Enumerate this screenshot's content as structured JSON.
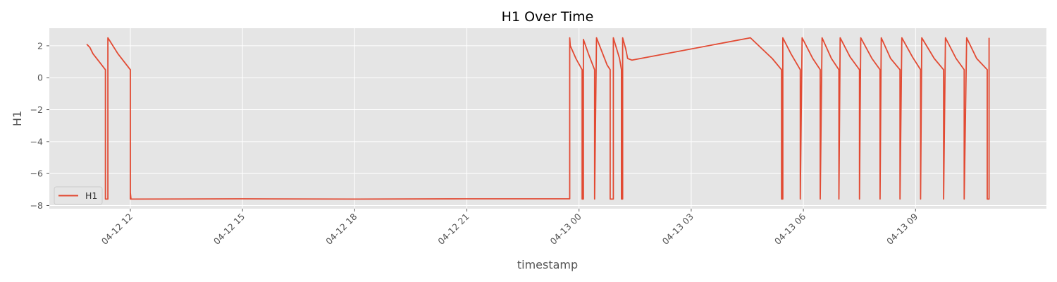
{
  "chart_data": {
    "type": "line",
    "title": "H1 Over Time",
    "xlabel": "timestamp",
    "ylabel": "H1",
    "grid": true,
    "legend_position": "lower-left",
    "xlim": [
      "2024-04-12 09:50",
      "2024-04-13 12:30"
    ],
    "ylim": [
      -8.2,
      3.1
    ],
    "x_ticks": [
      {
        "value": "2024-04-12 12:00",
        "label": "04-12 12"
      },
      {
        "value": "2024-04-12 15:00",
        "label": "04-12 15"
      },
      {
        "value": "2024-04-12 18:00",
        "label": "04-12 18"
      },
      {
        "value": "2024-04-12 21:00",
        "label": "04-12 21"
      },
      {
        "value": "2024-04-13 00:00",
        "label": "04-13 00"
      },
      {
        "value": "2024-04-13 03:00",
        "label": "04-13 03"
      },
      {
        "value": "2024-04-13 06:00",
        "label": "04-13 06"
      },
      {
        "value": "2024-04-13 09:00",
        "label": "04-13 09"
      }
    ],
    "y_ticks": [
      2,
      0,
      -2,
      -4,
      -6,
      -8
    ],
    "colors": {
      "series": "#E24A33",
      "plot_bg": "#E5E5E5",
      "grid": "#FFFFFF"
    },
    "series": [
      {
        "name": "H1",
        "points": [
          [
            "2024-04-12 10:50",
            2.1
          ],
          [
            "2024-04-12 10:55",
            1.9
          ],
          [
            "2024-04-12 11:00",
            1.5
          ],
          [
            "2024-04-12 11:10",
            1.0
          ],
          [
            "2024-04-12 11:20",
            0.5
          ],
          [
            "2024-04-12 11:20",
            -7.6
          ],
          [
            "2024-04-12 11:24",
            -7.6
          ],
          [
            "2024-04-12 11:24",
            2.5
          ],
          [
            "2024-04-12 11:40",
            1.5
          ],
          [
            "2024-04-12 12:00",
            0.5
          ],
          [
            "2024-04-12 12:00",
            -7.6
          ],
          [
            "2024-04-12 12:00",
            -7.2
          ],
          [
            "2024-04-12 12:01",
            -7.6
          ],
          [
            "2024-04-12 15:00",
            -7.58
          ],
          [
            "2024-04-12 18:00",
            -7.6
          ],
          [
            "2024-04-12 21:00",
            -7.58
          ],
          [
            "2024-04-12 23:45",
            -7.58
          ],
          [
            "2024-04-12 23:45",
            2.5
          ],
          [
            "2024-04-12 23:46",
            2.0
          ],
          [
            "2024-04-12 23:55",
            1.2
          ],
          [
            "2024-04-13 00:05",
            0.5
          ],
          [
            "2024-04-13 00:05",
            -7.6
          ],
          [
            "2024-04-13 00:07",
            -7.6
          ],
          [
            "2024-04-13 00:07",
            2.4
          ],
          [
            "2024-04-13 00:15",
            1.5
          ],
          [
            "2024-04-13 00:25",
            0.5
          ],
          [
            "2024-04-13 00:25",
            -7.6
          ],
          [
            "2024-04-13 00:28",
            2.5
          ],
          [
            "2024-04-13 00:35",
            1.8
          ],
          [
            "2024-04-13 00:45",
            0.8
          ],
          [
            "2024-04-13 00:50",
            0.5
          ],
          [
            "2024-04-13 00:50",
            -7.6
          ],
          [
            "2024-04-13 00:55",
            -7.6
          ],
          [
            "2024-04-13 00:55",
            2.5
          ],
          [
            "2024-04-13 01:05",
            1.2
          ],
          [
            "2024-04-13 01:08",
            0.5
          ],
          [
            "2024-04-13 01:08",
            -7.6
          ],
          [
            "2024-04-13 01:10",
            -7.6
          ],
          [
            "2024-04-13 01:10",
            2.5
          ],
          [
            "2024-04-13 01:15",
            1.8
          ],
          [
            "2024-04-13 01:18",
            1.2
          ],
          [
            "2024-04-13 01:25",
            1.1
          ],
          [
            "2024-04-13 04:35",
            2.5
          ],
          [
            "2024-04-13 05:10",
            1.2
          ],
          [
            "2024-04-13 05:25",
            0.5
          ],
          [
            "2024-04-13 05:25",
            -7.6
          ],
          [
            "2024-04-13 05:27",
            -7.6
          ],
          [
            "2024-04-13 05:27",
            2.5
          ],
          [
            "2024-04-13 05:40",
            1.5
          ],
          [
            "2024-04-13 05:55",
            0.5
          ],
          [
            "2024-04-13 05:55",
            -7.6
          ],
          [
            "2024-04-13 05:58",
            2.5
          ],
          [
            "2024-04-13 06:15",
            1.2
          ],
          [
            "2024-04-13 06:27",
            0.5
          ],
          [
            "2024-04-13 06:27",
            -7.6
          ],
          [
            "2024-04-13 06:30",
            2.5
          ],
          [
            "2024-04-13 06:45",
            1.2
          ],
          [
            "2024-04-13 06:57",
            0.5
          ],
          [
            "2024-04-13 06:57",
            -7.6
          ],
          [
            "2024-04-13 06:59",
            2.5
          ],
          [
            "2024-04-13 07:15",
            1.3
          ],
          [
            "2024-04-13 07:30",
            0.5
          ],
          [
            "2024-04-13 07:30",
            -7.6
          ],
          [
            "2024-04-13 07:32",
            2.5
          ],
          [
            "2024-04-13 07:50",
            1.2
          ],
          [
            "2024-04-13 08:03",
            0.5
          ],
          [
            "2024-04-13 08:03",
            -7.6
          ],
          [
            "2024-04-13 08:05",
            2.5
          ],
          [
            "2024-04-13 08:20",
            1.2
          ],
          [
            "2024-04-13 08:35",
            0.5
          ],
          [
            "2024-04-13 08:35",
            -7.6
          ],
          [
            "2024-04-13 08:38",
            2.5
          ],
          [
            "2024-04-13 08:55",
            1.3
          ],
          [
            "2024-04-13 09:08",
            0.5
          ],
          [
            "2024-04-13 09:08",
            -7.6
          ],
          [
            "2024-04-13 09:10",
            2.5
          ],
          [
            "2024-04-13 09:30",
            1.2
          ],
          [
            "2024-04-13 09:45",
            0.5
          ],
          [
            "2024-04-13 09:45",
            -7.6
          ],
          [
            "2024-04-13 09:48",
            2.5
          ],
          [
            "2024-04-13 10:05",
            1.2
          ],
          [
            "2024-04-13 10:18",
            0.5
          ],
          [
            "2024-04-13 10:18",
            -7.6
          ],
          [
            "2024-04-13 10:22",
            2.5
          ],
          [
            "2024-04-13 10:38",
            1.2
          ],
          [
            "2024-04-13 10:55",
            0.5
          ],
          [
            "2024-04-13 10:55",
            -7.6
          ],
          [
            "2024-04-13 10:58",
            -7.6
          ],
          [
            "2024-04-13 10:58",
            2.5
          ]
        ]
      }
    ]
  }
}
